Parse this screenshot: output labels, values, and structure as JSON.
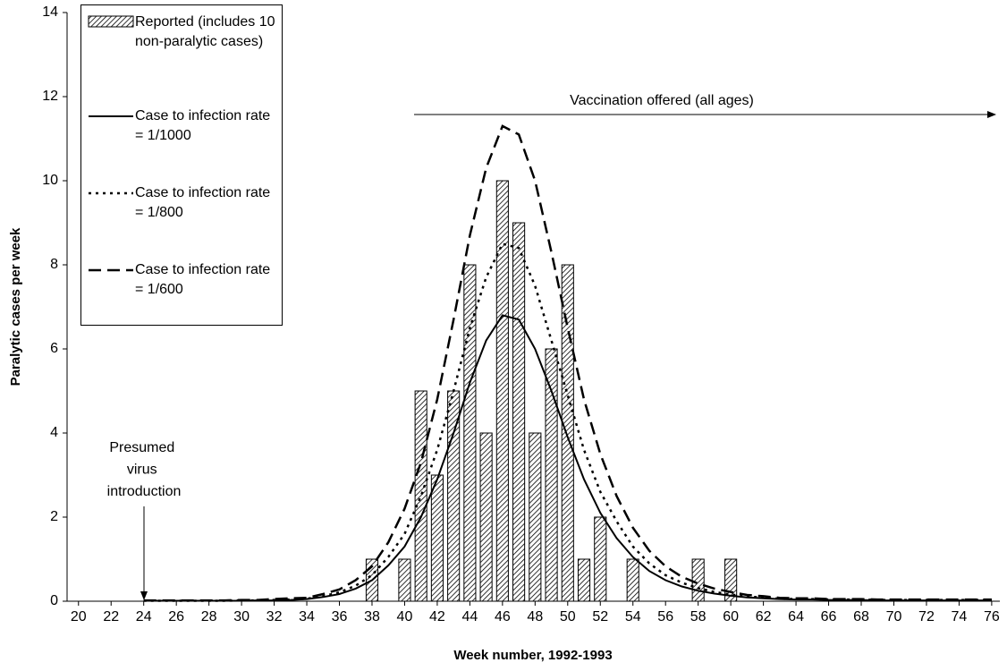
{
  "chart_data": {
    "type": "bar_line",
    "x_label": "Week number, 1992-1993",
    "y_label": "Paralytic cases per week",
    "x": [
      20,
      21,
      22,
      23,
      24,
      25,
      26,
      27,
      28,
      29,
      30,
      31,
      32,
      33,
      34,
      35,
      36,
      37,
      38,
      39,
      40,
      41,
      42,
      43,
      44,
      45,
      46,
      47,
      48,
      49,
      50,
      51,
      52,
      53,
      54,
      55,
      56,
      57,
      58,
      59,
      60,
      61,
      62,
      63,
      64,
      65,
      66,
      67,
      68,
      69,
      70,
      71,
      72,
      73,
      74,
      75,
      76
    ],
    "xlim": [
      19.3,
      76.5
    ],
    "xticks": [
      20,
      22,
      24,
      26,
      28,
      30,
      32,
      34,
      36,
      38,
      40,
      42,
      44,
      46,
      48,
      50,
      52,
      54,
      56,
      58,
      60,
      62,
      64,
      66,
      68,
      70,
      72,
      74,
      76
    ],
    "ylim": [
      0,
      14
    ],
    "yticks": [
      0,
      2,
      4,
      6,
      8,
      10,
      12,
      14
    ],
    "series": [
      {
        "name": "Reported (includes 10 non-paralytic cases)",
        "kind": "bar",
        "color": "#000000",
        "values": [
          null,
          null,
          null,
          null,
          null,
          null,
          null,
          null,
          null,
          null,
          null,
          null,
          null,
          null,
          null,
          null,
          null,
          null,
          1,
          null,
          1,
          5,
          3,
          5,
          8,
          4,
          10,
          9,
          4,
          6,
          8,
          1,
          2,
          null,
          1,
          null,
          null,
          null,
          1,
          null,
          1,
          null,
          null,
          null,
          null,
          null,
          null,
          null,
          null,
          null,
          null,
          null,
          null,
          null,
          null,
          null,
          null
        ]
      },
      {
        "name": "Case to infection rate = 1/1000",
        "kind": "line",
        "style": "solid",
        "color": "#000000",
        "values": [
          null,
          null,
          null,
          null,
          0.01,
          0.01,
          0.01,
          0.01,
          0.01,
          0.01,
          0.01,
          0.02,
          0.02,
          0.03,
          0.05,
          0.1,
          0.17,
          0.3,
          0.5,
          0.85,
          1.3,
          2,
          2.9,
          4,
          5.2,
          6.2,
          6.8,
          6.7,
          6,
          5,
          3.9,
          2.9,
          2.1,
          1.5,
          1.05,
          0.72,
          0.5,
          0.35,
          0.25,
          0.18,
          0.13,
          0.09,
          0.07,
          0.05,
          0.04,
          0.04,
          0.03,
          0.03,
          0.03,
          0.02,
          0.02,
          0.02,
          0.02,
          0.02,
          0.02,
          0.02,
          0.02
        ]
      },
      {
        "name": "Case to infection rate = 1/800",
        "kind": "line",
        "style": "dotted",
        "color": "#000000",
        "values": [
          null,
          null,
          null,
          null,
          0.01,
          0.01,
          0.01,
          0.01,
          0.01,
          0.01,
          0.02,
          0.02,
          0.03,
          0.04,
          0.06,
          0.12,
          0.21,
          0.37,
          0.62,
          1.05,
          1.6,
          2.5,
          3.6,
          5,
          6.5,
          7.7,
          8.5,
          8.4,
          7.5,
          6.2,
          4.9,
          3.6,
          2.6,
          1.9,
          1.3,
          0.9,
          0.62,
          0.44,
          0.31,
          0.22,
          0.16,
          0.11,
          0.09,
          0.06,
          0.05,
          0.05,
          0.04,
          0.04,
          0.04,
          0.03,
          0.03,
          0.03,
          0.03,
          0.03,
          0.03,
          0.03,
          0.03
        ]
      },
      {
        "name": "Case to infection rate = 1/600",
        "kind": "line",
        "style": "dashed",
        "color": "#000000",
        "values": [
          null,
          null,
          null,
          null,
          0.02,
          0.02,
          0.02,
          0.02,
          0.02,
          0.02,
          0.03,
          0.03,
          0.05,
          0.07,
          0.08,
          0.17,
          0.28,
          0.5,
          0.83,
          1.4,
          2.2,
          3.3,
          4.8,
          6.7,
          8.7,
          10.3,
          11.3,
          11.1,
          10,
          8.3,
          6.5,
          4.8,
          3.5,
          2.5,
          1.75,
          1.2,
          0.83,
          0.58,
          0.42,
          0.3,
          0.22,
          0.15,
          0.12,
          0.08,
          0.07,
          0.07,
          0.05,
          0.05,
          0.05,
          0.04,
          0.04,
          0.04,
          0.04,
          0.04,
          0.04,
          0.04,
          0.04
        ]
      }
    ],
    "annotations": [
      "Vaccination offered (all ages)",
      "Presumed virus introduction"
    ],
    "legend": "upper left"
  }
}
